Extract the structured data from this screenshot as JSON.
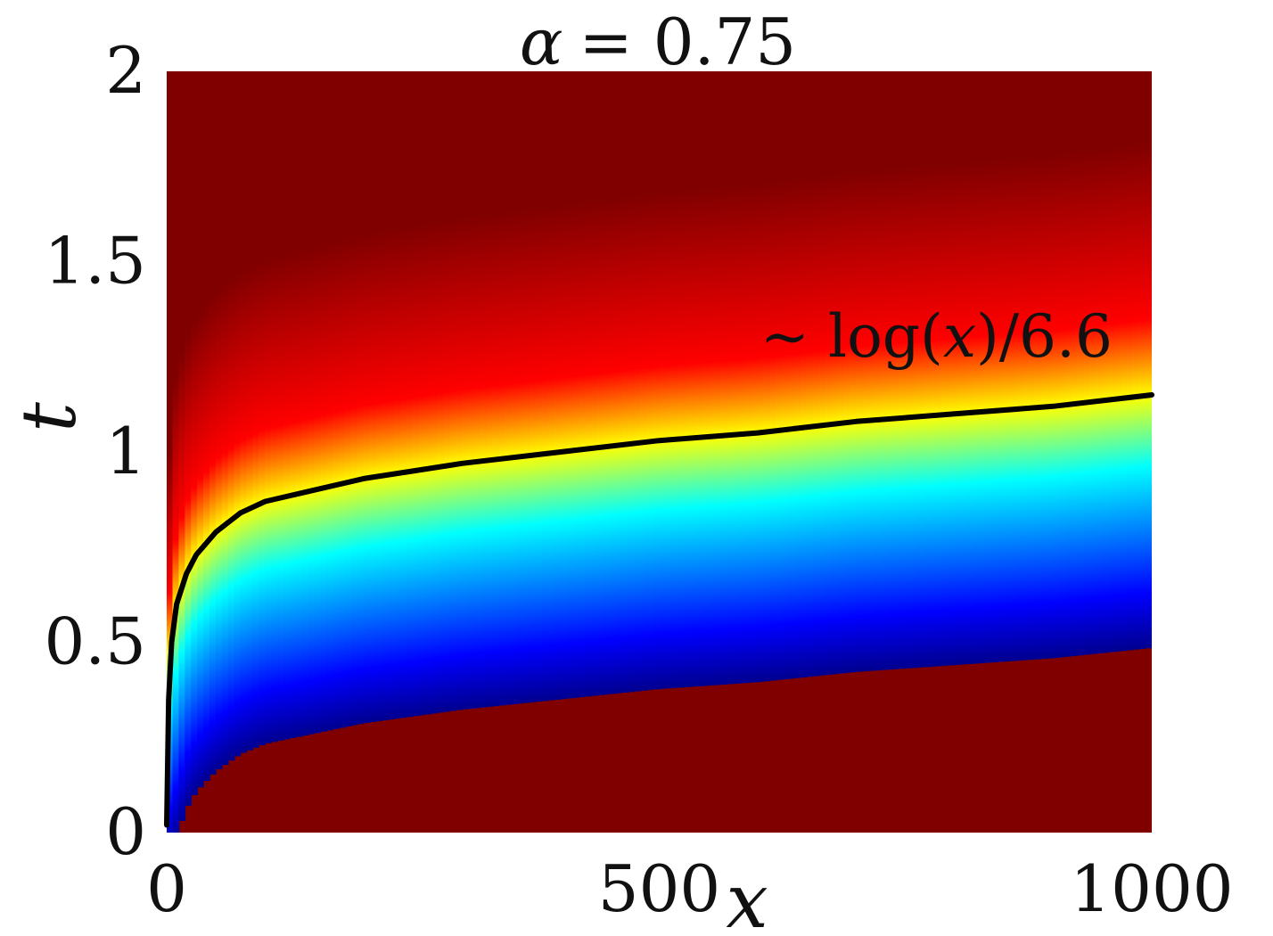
{
  "chart_data": {
    "type": "heatmap",
    "title_symbol": "α",
    "title_value": "= 0.75",
    "xlabel": "x",
    "ylabel": "t",
    "xlim": [
      0,
      1000
    ],
    "ylim": [
      0,
      2
    ],
    "x_ticks": [
      0,
      500,
      1000
    ],
    "x_tick_labels": [
      "0",
      "500",
      "1000"
    ],
    "y_ticks": [
      0,
      0.5,
      1,
      1.5,
      2
    ],
    "y_tick_labels": [
      "0",
      "0.5",
      "1",
      "1.5",
      "2"
    ],
    "colormap": "jet",
    "grid": false,
    "front_curve": {
      "label_prefix": "∼ log(",
      "label_var": "x",
      "label_suffix": ")/6.6",
      "color": "#000000",
      "x": [
        0,
        2,
        5,
        10,
        20,
        30,
        50,
        75,
        100,
        150,
        200,
        250,
        300,
        400,
        500,
        600,
        700,
        800,
        900,
        1000
      ],
      "y": [
        0.02,
        0.35,
        0.5,
        0.6,
        0.68,
        0.73,
        0.79,
        0.84,
        0.87,
        0.9,
        0.93,
        0.95,
        0.97,
        1.0,
        1.03,
        1.05,
        1.08,
        1.1,
        1.12,
        1.15
      ]
    }
  }
}
